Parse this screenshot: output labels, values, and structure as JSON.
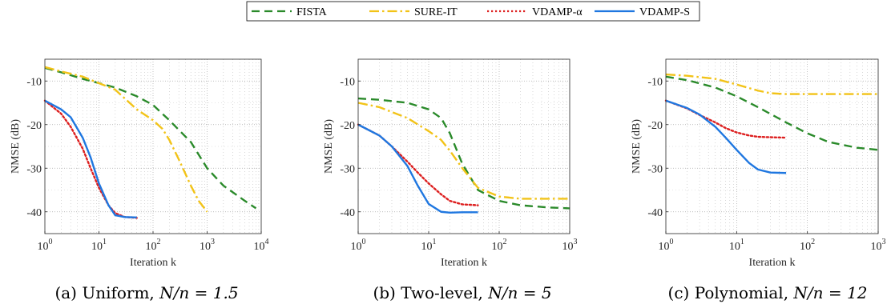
{
  "legend": {
    "entries": [
      {
        "label": "FISTA",
        "color": "#2a8a2a",
        "dash": "dashed"
      },
      {
        "label": "SURE-IT",
        "color": "#f2c318",
        "dash": "dashdot"
      },
      {
        "label": "VDAMP-α",
        "color": "#dd1f1f",
        "dash": "dotted"
      },
      {
        "label": "VDAMP-S",
        "color": "#1f77e0",
        "dash": "solid"
      }
    ]
  },
  "captions": [
    {
      "prefix": "(a) Uniform, ",
      "math": "N/n = 1.5"
    },
    {
      "prefix": "(b) Two-level, ",
      "math": "N/n = 5"
    },
    {
      "prefix": "(c) Polynomial, ",
      "math": "N/n = 12"
    }
  ],
  "chart_data": [
    {
      "type": "line",
      "xscale": "log",
      "xlim": [
        1,
        10000
      ],
      "ylim": [
        -45,
        -5
      ],
      "xlabel": "Iteration k",
      "ylabel": "NMSE (dB)",
      "xticks": [
        "10^0",
        "10^1",
        "10^2",
        "10^3",
        "10^4"
      ],
      "yticks": [
        -10,
        -20,
        -30,
        -40
      ],
      "grid": true,
      "series": [
        {
          "name": "FISTA",
          "x": [
            1,
            2,
            5,
            10,
            20,
            50,
            100,
            200,
            500,
            1000,
            2000,
            5000,
            8000
          ],
          "y": [
            -7,
            -8,
            -9.5,
            -10.5,
            -11.5,
            -13.5,
            -15.5,
            -19,
            -24,
            -30,
            -34,
            -37.5,
            -39.2
          ]
        },
        {
          "name": "SURE-IT",
          "x": [
            1,
            2,
            5,
            10,
            20,
            30,
            50,
            100,
            150,
            200,
            300,
            500,
            700,
            1000
          ],
          "y": [
            -6.8,
            -7.8,
            -9,
            -10.5,
            -12,
            -14,
            -16.5,
            -19,
            -21,
            -23.5,
            -28,
            -34,
            -37.5,
            -40
          ]
        },
        {
          "name": "VDAMP-α",
          "x": [
            1,
            2,
            3,
            5,
            7,
            10,
            15,
            20,
            30,
            50
          ],
          "y": [
            -14.5,
            -17.5,
            -20.5,
            -25.5,
            -30,
            -34.5,
            -38.5,
            -40.3,
            -41.2,
            -41.4
          ]
        },
        {
          "name": "VDAMP-S",
          "x": [
            1,
            2,
            3,
            5,
            7,
            10,
            15,
            20,
            30,
            50
          ],
          "y": [
            -14.5,
            -16.5,
            -18.3,
            -23,
            -27.5,
            -33.5,
            -38.5,
            -40.8,
            -41.2,
            -41.3
          ]
        }
      ]
    },
    {
      "type": "line",
      "xscale": "log",
      "xlim": [
        1,
        1000
      ],
      "ylim": [
        -45,
        -5
      ],
      "xlabel": "Iteration k",
      "ylabel": "NMSE (dB)",
      "xticks": [
        "10^0",
        "10^1",
        "10^2",
        "10^3"
      ],
      "yticks": [
        -10,
        -20,
        -30,
        -40
      ],
      "grid": true,
      "series": [
        {
          "name": "FISTA",
          "x": [
            1,
            2,
            5,
            10,
            15,
            20,
            30,
            50,
            100,
            200,
            500,
            1000
          ],
          "y": [
            -14,
            -14.3,
            -15,
            -16.5,
            -18.5,
            -22,
            -29,
            -35,
            -37.5,
            -38.5,
            -39,
            -39.2
          ]
        },
        {
          "name": "SURE-IT",
          "x": [
            1,
            2,
            5,
            10,
            15,
            20,
            30,
            50,
            100,
            200,
            500,
            1000
          ],
          "y": [
            -15,
            -16,
            -18.5,
            -21.5,
            -23.5,
            -26,
            -30,
            -34.5,
            -36.5,
            -37,
            -37,
            -37
          ]
        },
        {
          "name": "VDAMP-α",
          "x": [
            1,
            2,
            3,
            5,
            7,
            10,
            15,
            20,
            30,
            50
          ],
          "y": [
            -20,
            -22.5,
            -25,
            -28.5,
            -31,
            -33.5,
            -36,
            -37.5,
            -38.3,
            -38.5
          ]
        },
        {
          "name": "VDAMP-S",
          "x": [
            1,
            2,
            3,
            5,
            7,
            10,
            15,
            20,
            30,
            50
          ],
          "y": [
            -20,
            -22.5,
            -25,
            -29.5,
            -34,
            -38.2,
            -40,
            -40.2,
            -40.1,
            -40.1
          ]
        }
      ]
    },
    {
      "type": "line",
      "xscale": "log",
      "xlim": [
        1,
        1000
      ],
      "ylim": [
        -45,
        -5
      ],
      "xlabel": "Iteration k",
      "ylabel": "NMSE (dB)",
      "xticks": [
        "10^0",
        "10^1",
        "10^2",
        "10^3"
      ],
      "yticks": [
        -10,
        -20,
        -30,
        -40
      ],
      "grid": true,
      "series": [
        {
          "name": "FISTA",
          "x": [
            1,
            2,
            5,
            10,
            20,
            50,
            100,
            200,
            500,
            1000
          ],
          "y": [
            -9,
            -9.8,
            -11.5,
            -13.5,
            -16,
            -19.5,
            -22,
            -24,
            -25.3,
            -25.8
          ]
        },
        {
          "name": "SURE-IT",
          "x": [
            1,
            2,
            5,
            10,
            20,
            30,
            50,
            100,
            200,
            500,
            1000
          ],
          "y": [
            -8.5,
            -8.8,
            -9.5,
            -10.8,
            -12.2,
            -12.8,
            -13,
            -13,
            -13,
            -13,
            -13
          ]
        },
        {
          "name": "VDAMP-α",
          "x": [
            1,
            2,
            3,
            5,
            7,
            10,
            15,
            20,
            30,
            50
          ],
          "y": [
            -14.5,
            -16.3,
            -17.8,
            -19.5,
            -20.8,
            -21.8,
            -22.5,
            -22.8,
            -22.9,
            -23
          ]
        },
        {
          "name": "VDAMP-S",
          "x": [
            1,
            2,
            3,
            5,
            7,
            10,
            15,
            20,
            30,
            50
          ],
          "y": [
            -14.5,
            -16.2,
            -17.7,
            -20.5,
            -23,
            -25.8,
            -28.8,
            -30.3,
            -31,
            -31.1
          ]
        }
      ]
    }
  ]
}
